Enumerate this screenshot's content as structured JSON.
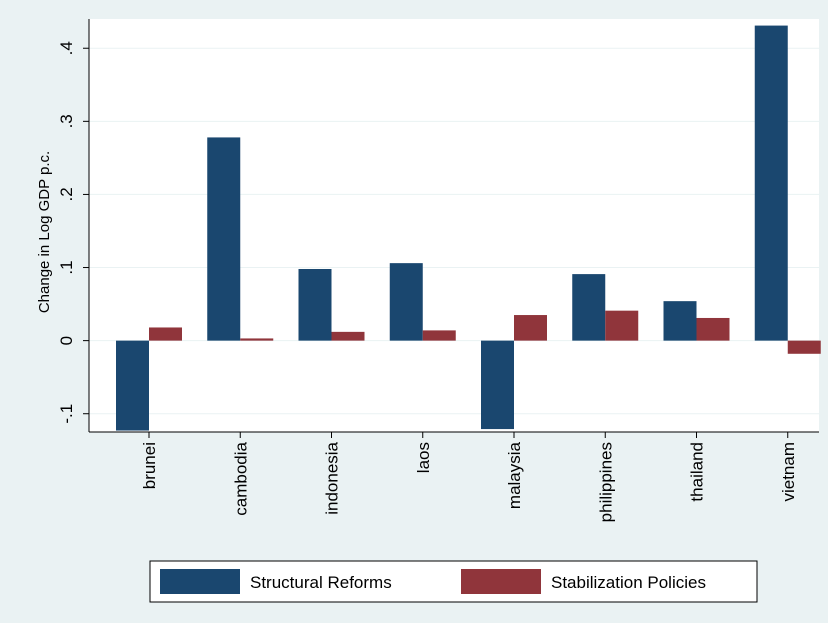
{
  "chart_data": {
    "type": "bar",
    "title": "",
    "xlabel": "",
    "ylabel": "Change in Log GDP p.c.",
    "ylim": [
      -0.125,
      0.44
    ],
    "yticks": [
      -0.1,
      0,
      0.1,
      0.2,
      0.3,
      0.4
    ],
    "ytick_labels": [
      "-.1",
      "0",
      ".1",
      ".2",
      ".3",
      ".4"
    ],
    "grid": true,
    "legend_position": "bottom",
    "categories": [
      "brunei",
      "cambodia",
      "indonesia",
      "laos",
      "malaysia",
      "philippines",
      "thailand",
      "vietnam"
    ],
    "series": [
      {
        "name": "Structural Reforms",
        "color": "#1a476f",
        "values": [
          -0.123,
          0.278,
          0.098,
          0.106,
          -0.121,
          0.091,
          0.054,
          0.431
        ]
      },
      {
        "name": "Stabilization Policies",
        "color": "#90353b",
        "values": [
          0.018,
          0.003,
          0.012,
          0.014,
          0.035,
          0.041,
          0.031,
          -0.018
        ]
      }
    ],
    "colors": {
      "outer_background": "#eaf2f3",
      "plot_background": "#ffffff",
      "grid": "#eaf2f3"
    }
  }
}
